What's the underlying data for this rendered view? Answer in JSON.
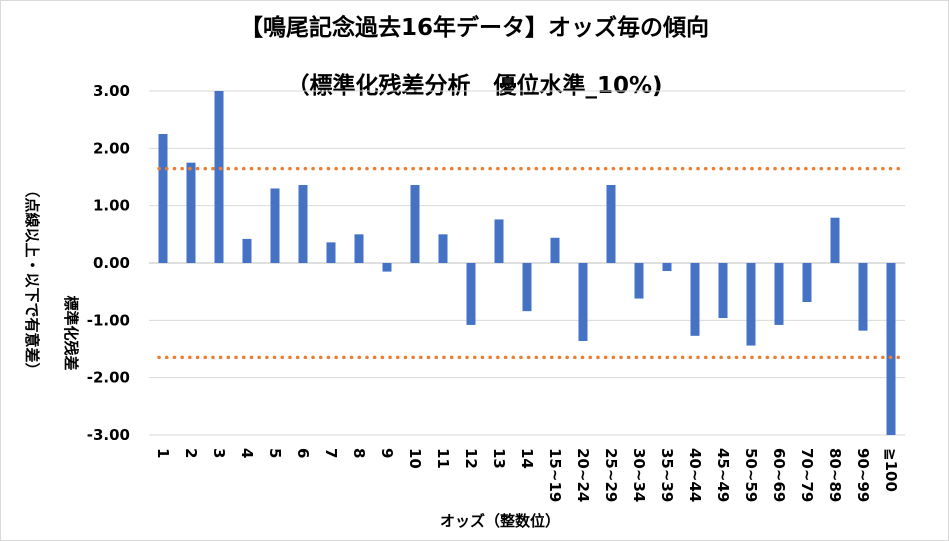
{
  "chart_data": {
    "type": "bar",
    "title": "【鳴尾記念過去16年データ】オッズ毎の傾向",
    "subtitle": "（標準化残差分析　優位水準_10%)",
    "ylabel_line1": "標準化残差",
    "ylabel_line2": "（点線以上・以下で有意差）",
    "xlabel": "オッズ（整数位）",
    "ylim": [
      -3,
      3
    ],
    "yticks": [
      3,
      2,
      1,
      0,
      -1,
      -2,
      -3
    ],
    "ytick_labels": [
      "3.00",
      "2.00",
      "1.00",
      "0.00",
      "-1.00",
      "-2.00",
      "-3.00"
    ],
    "categories": [
      "1",
      "2",
      "3",
      "4",
      "5",
      "6",
      "7",
      "8",
      "9",
      "10",
      "11",
      "12",
      "13",
      "14",
      "15~19",
      "20~24",
      "25~29",
      "30~34",
      "35~39",
      "40~44",
      "45~49",
      "50~59",
      "60~69",
      "70~79",
      "80~89",
      "90~99",
      "≧100"
    ],
    "values": [
      2.25,
      1.75,
      3.0,
      0.42,
      1.3,
      1.36,
      0.36,
      0.5,
      -0.15,
      1.36,
      0.5,
      -1.08,
      0.76,
      -0.84,
      0.44,
      -1.36,
      1.36,
      -0.62,
      -0.14,
      -1.27,
      -0.96,
      -1.44,
      -1.08,
      -0.68,
      0.79,
      -1.18,
      -3.0
    ],
    "thresholds": [
      1.645,
      -1.645
    ],
    "grid": true,
    "legend": "none",
    "colors": {
      "bar": "#4472c4",
      "threshold": "#ed7d31",
      "grid": "#d9d9d9"
    }
  }
}
